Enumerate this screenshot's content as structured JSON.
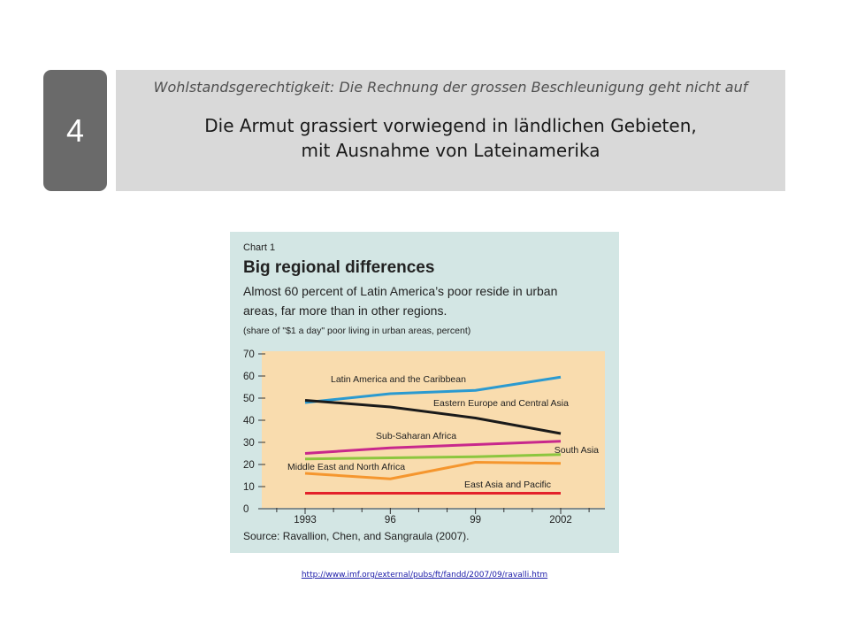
{
  "slide": {
    "number": "4",
    "subtitle": "Wohlstandsgerechtigkeit: Die Rechnung der grossen Beschleunigung geht nicht auf",
    "title_line1": "Die Armut grassiert vorwiegend in ländlichen Gebieten,",
    "title_line2": "mit Ausnahme von Lateinamerika",
    "link": "http://www.imf.org/external/pubs/ft/fandd/2007/09/ravalli.htm"
  },
  "chart_data": {
    "type": "line",
    "chart_label": "Chart 1",
    "title": "Big regional differences",
    "subtitle_line1": "Almost 60 percent of Latin America’s poor reside in urban",
    "subtitle_line2": "areas, far more than in other regions.",
    "ylabel": "(share of \"$1 a day\" poor living in urban areas, percent)",
    "source": "Source: Ravallion, Chen, and Sangraula (2007).",
    "x": [
      1993,
      1996,
      1999,
      2002
    ],
    "x_tick_labels": [
      "1993",
      "96",
      "99",
      "2002"
    ],
    "y_ticks": [
      0,
      10,
      20,
      30,
      40,
      50,
      60,
      70
    ],
    "ylim": [
      0,
      70
    ],
    "grid": false,
    "colors": {
      "background": "#d3e6e4",
      "plot_area": "#f9dcae",
      "latin_america": "#2b9ad0",
      "eastern_europe": "#1a1a1a",
      "sub_saharan": "#c8288c",
      "south_asia": "#8cc63f",
      "middle_east": "#f5962e",
      "east_asia": "#e3202a"
    },
    "series": [
      {
        "name": "Latin America and the Caribbean",
        "key": "latin_america",
        "values": [
          48,
          52,
          53.5,
          59.5
        ]
      },
      {
        "name": "Eastern Europe and Central Asia",
        "key": "eastern_europe",
        "values": [
          49,
          46,
          41,
          34
        ]
      },
      {
        "name": "Sub-Saharan Africa",
        "key": "sub_saharan",
        "values": [
          25,
          27.5,
          29,
          30.5
        ]
      },
      {
        "name": "South Asia",
        "key": "south_asia",
        "values": [
          22.5,
          23,
          23.5,
          24.5
        ]
      },
      {
        "name": "Middle East and North Africa",
        "key": "middle_east",
        "values": [
          16,
          13.5,
          21,
          20.5
        ]
      },
      {
        "name": "East Asia and Pacific",
        "key": "east_asia",
        "values": [
          7,
          7,
          7,
          7
        ]
      }
    ]
  }
}
